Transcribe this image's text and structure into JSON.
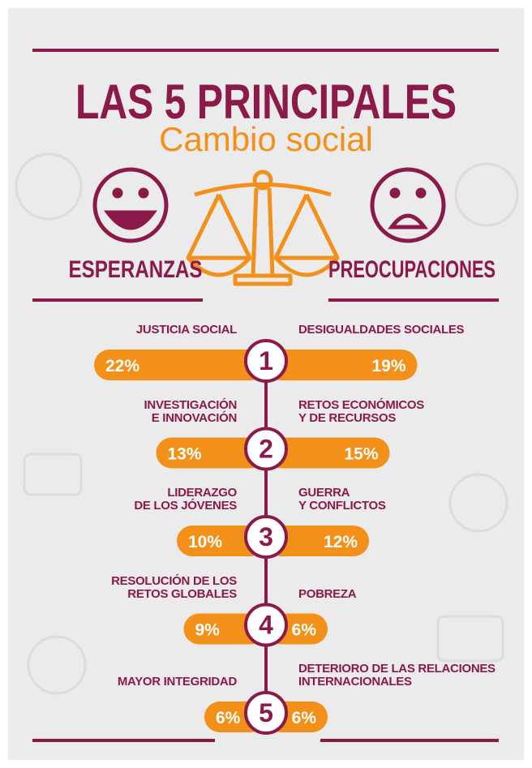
{
  "header": {
    "title": "LAS 5 PRINCIPALES",
    "subtitle": "Cambio social"
  },
  "chart_data": {
    "type": "butterfly",
    "ranks": [
      1,
      2,
      3,
      4,
      5
    ],
    "series": [
      {
        "name": "ESPERANZAS",
        "color": "#f39019",
        "categories": [
          "JUSTICIA SOCIAL",
          "INVESTIGACIÓN\nE INNOVACIÓN",
          "LIDERAZGO\nDE LOS JÓVENES",
          "RESOLUCIÓN DE LOS\nRETOS GLOBALES",
          "MAYOR INTEGRIDAD"
        ],
        "values": [
          22,
          13,
          10,
          9,
          6
        ],
        "value_labels": [
          "22%",
          "13%",
          "10%",
          "9%",
          "6%"
        ]
      },
      {
        "name": "PREOCUPACIONES",
        "color": "#f39019",
        "categories": [
          "DESIGUALDADES SOCIALES",
          "RETOS ECONÓMICOS\nY DE RECURSOS",
          "GUERRA\nY CONFLICTOS",
          "POBREZA",
          "DETERIORO DE LAS RELACIONES\nINTERNACIONALES"
        ],
        "values": [
          19,
          15,
          12,
          6,
          6
        ],
        "value_labels": [
          "19%",
          "15%",
          "12%",
          "6%",
          "6%"
        ]
      }
    ]
  }
}
